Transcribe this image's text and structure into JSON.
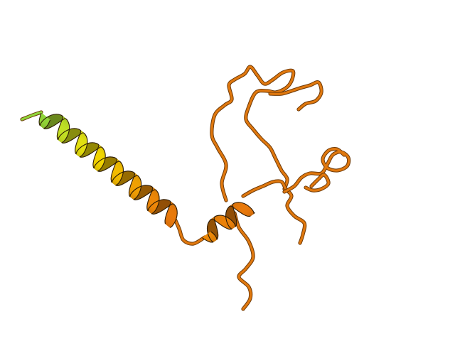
{
  "scene": {
    "subject": "protein-cartoon",
    "background_color": "#ffffff",
    "coil_color": "#e0780e",
    "coil_shadow_color": "#6e3a08",
    "helix_gradient": [
      "#8fd53a",
      "#d9e51a",
      "#f2d800",
      "#f3b300",
      "#ee8a08",
      "#e8770c"
    ],
    "outline_color": "#2b1a04"
  }
}
